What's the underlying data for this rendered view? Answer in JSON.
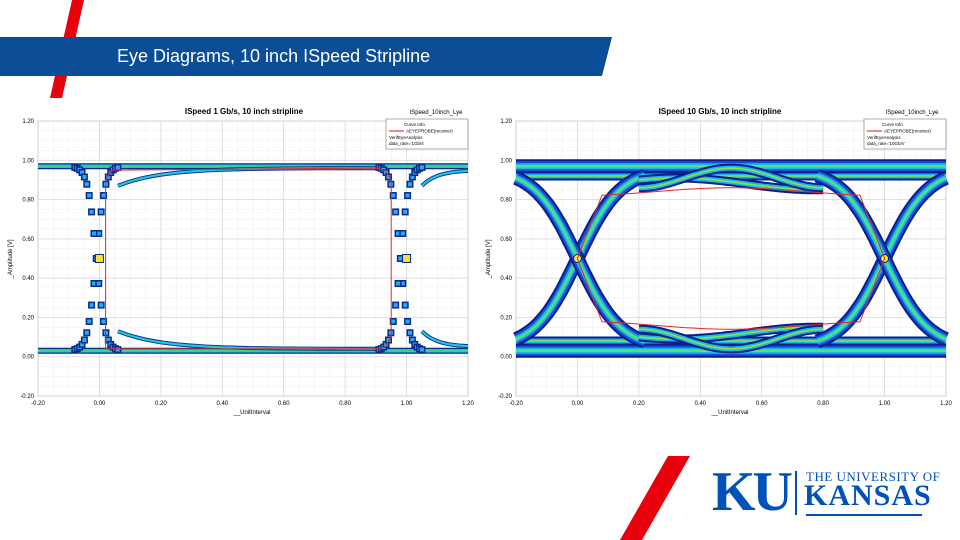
{
  "slide": {
    "title": "Eye Diagrams, 10 inch ISpeed Stripline",
    "colors": {
      "title_band": "#0b4d97",
      "accent_red": "#e8000b",
      "ku_blue": "#0051ba"
    }
  },
  "logo": {
    "ku": "KU",
    "univ": "THE UNIVERSITY OF",
    "kansas": "KANSAS"
  },
  "chart_data": [
    {
      "type": "line",
      "title": "ISpeed 1 Gb/s, 10 inch stripline",
      "corner_label": "ISpeed_10inch_Lye",
      "legend": {
        "placement": "top-right",
        "heading": "Curve Info",
        "entry": "AEYEPROBE(receiver)",
        "lines": [
          "VerifEyeAnalysis",
          "data_rate='1Gb/s'"
        ]
      },
      "xlabel": "__UnitInterval",
      "ylabel": "_Amplitude [V]",
      "xlim": [
        -0.2,
        1.2
      ],
      "ylim": [
        -0.2,
        1.2
      ],
      "x_ticks": [
        "-0.20",
        "0.00",
        "0.20",
        "0.40",
        "0.60",
        "0.80",
        "1.00",
        "1.20"
      ],
      "y_ticks": [
        "-0.20",
        "0.00",
        "0.20",
        "0.40",
        "0.60",
        "0.80",
        "1.00",
        "1.20"
      ],
      "grid": true,
      "eye": {
        "rise_start": -0.08,
        "rise_end": 0.06,
        "fall_start": 0.91,
        "fall_end": 1.05,
        "inner_top": 0.96,
        "inner_bottom": 0.04,
        "crossing": 0.5
      }
    },
    {
      "type": "line",
      "title": "ISpeed 10 Gb/s, 10 inch stripline",
      "corner_label": "ISpeed_10inch_Lye",
      "legend": {
        "placement": "top-right",
        "heading": "Curve Info",
        "entry": "AEYEPROBE(receiver)",
        "lines": [
          "VerifEyeAnalysis",
          "data_rate='10Gb/s'"
        ]
      },
      "xlabel": "__UnitInterval",
      "ylabel": "_Amplitude [V]",
      "xlim": [
        -0.2,
        1.2
      ],
      "ylim": [
        -0.2,
        1.2
      ],
      "x_ticks": [
        "-0.20",
        "0.00",
        "0.20",
        "0.40",
        "0.60",
        "0.80",
        "1.00",
        "1.20"
      ],
      "y_ticks": [
        "-0.20",
        "0.00",
        "0.20",
        "0.40",
        "0.60",
        "0.80",
        "1.00",
        "1.20"
      ],
      "grid": true,
      "eye": {
        "crossing_x": [
          0.0,
          1.0
        ],
        "crossing_y": 0.5,
        "upper_level": 0.96,
        "lower_level": 0.04,
        "inner_top": 0.86,
        "inner_bottom": 0.14
      }
    }
  ]
}
